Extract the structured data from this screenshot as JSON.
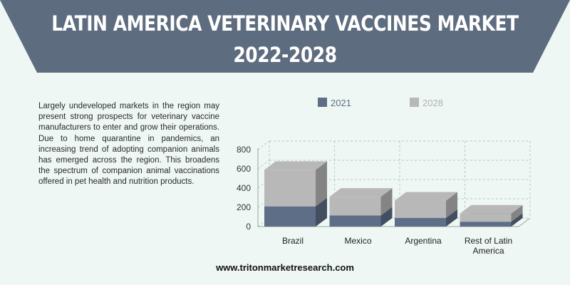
{
  "header": {
    "title_line1": "LATIN AMERICA VETERINARY VACCINES MARKET",
    "title_line2": "2022-2028"
  },
  "description": "Largely undeveloped markets in the region may present strong prospects for veterinary vaccine manufacturers to enter and grow their operations. Due to home quarantine in pandemics, an increasing trend of adopting companion animals has emerged across the region. This broadens the spectrum of companion animal vaccinations offered in pet health and nutrition products.",
  "footer": {
    "url": "www.tritonmarketresearch.com"
  },
  "colors": {
    "banner": "#5e6c80",
    "series_2021": "#5d6e86",
    "series_2028": "#b8b8b8"
  },
  "chart_data": {
    "type": "bar",
    "stacked": true,
    "categories": [
      "Brazil",
      "Mexico",
      "Argentina",
      "Rest of Latin America"
    ],
    "series": [
      {
        "name": "2021",
        "values": [
          210,
          115,
          90,
          50
        ]
      },
      {
        "name": "2028",
        "values": [
          380,
          195,
          180,
          85
        ]
      }
    ],
    "ylim": [
      0,
      800
    ],
    "yticks": [
      0,
      200,
      400,
      600,
      800
    ],
    "grid": true,
    "legend": "top"
  }
}
